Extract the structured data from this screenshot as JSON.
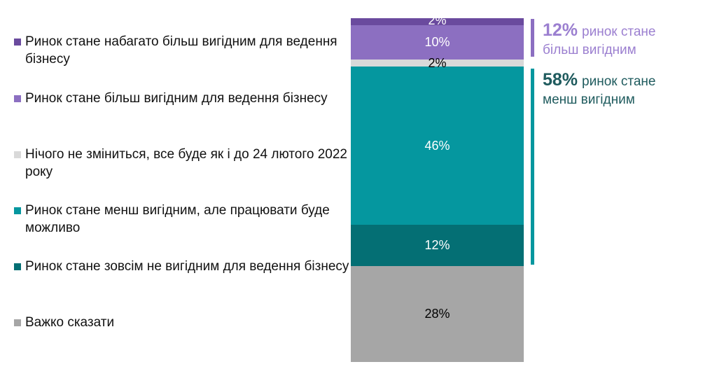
{
  "chart_data": {
    "type": "bar",
    "stacked": true,
    "orientation": "vertical",
    "series": [
      {
        "name": "Ринок стане набагато більш вигідним для ведення бізнесу",
        "value": 2,
        "label": "2%",
        "color": "#6a4a9e",
        "label_color": "#ffffff"
      },
      {
        "name": "Ринок стане більш вигідним для ведення бізнесу",
        "value": 10,
        "label": "10%",
        "color": "#8c6fc1",
        "label_color": "#ffffff"
      },
      {
        "name": "Нічого не зміниться, все буде як і до 24 лютого 2022 року",
        "value": 2,
        "label": "2%",
        "color": "#d9d9d9",
        "label_color": "#000000"
      },
      {
        "name": "Ринок стане менш вигідним, але працювати буде можливо",
        "value": 46,
        "label": "46%",
        "color": "#05979f",
        "label_color": "#ffffff"
      },
      {
        "name": "Ринок стане зовсім не вигідним для ведення бізнесу",
        "value": 12,
        "label": "12%",
        "color": "#046f74",
        "label_color": "#ffffff"
      },
      {
        "name": "Важко сказати",
        "value": 28,
        "label": "28%",
        "color": "#a6a6a6",
        "label_color": "#000000"
      }
    ],
    "ylim": [
      0,
      100
    ],
    "legend_position": "left",
    "annotations": [
      {
        "value": "12%",
        "text": "ринок стане більш вигідним",
        "color": "#9b7fd0",
        "value_color": "#9b7fd0",
        "line_color": "#8c6fc1",
        "spans": [
          0,
          1
        ]
      },
      {
        "value": "58%",
        "text": "ринок стане менш вигідним",
        "color": "#1f5b5e",
        "value_color": "#1f5b5e",
        "line_color": "#05979f",
        "spans": [
          3,
          4
        ]
      }
    ]
  }
}
